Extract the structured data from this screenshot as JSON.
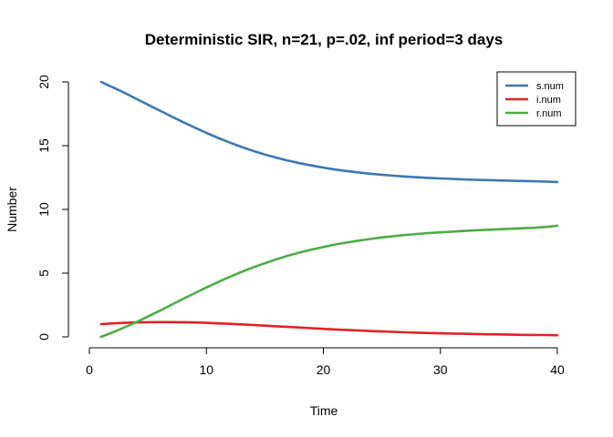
{
  "chart_data": {
    "type": "line",
    "title": "Deterministic SIR, n=21, p=.02, inf period=3 days",
    "xlabel": "Time",
    "ylabel": "Number",
    "xlim": [
      0,
      40
    ],
    "ylim": [
      0,
      20
    ],
    "x_ticks": [
      0,
      10,
      20,
      30,
      40
    ],
    "y_ticks": [
      0,
      5,
      10,
      15,
      20
    ],
    "grid": false,
    "legend_position": "top-right",
    "x": [
      1,
      2,
      3,
      4,
      5,
      6,
      7,
      8,
      9,
      10,
      11,
      12,
      13,
      14,
      15,
      16,
      17,
      18,
      19,
      20,
      21,
      22,
      23,
      24,
      25,
      26,
      27,
      28,
      29,
      30,
      31,
      32,
      33,
      34,
      35,
      36,
      37,
      38,
      39,
      40
    ],
    "series": [
      {
        "name": "s.num",
        "color": "#3b78b4",
        "values": [
          20.0,
          19.58,
          19.14,
          18.68,
          18.22,
          17.76,
          17.3,
          16.85,
          16.42,
          16.0,
          15.61,
          15.24,
          14.9,
          14.59,
          14.31,
          14.05,
          13.82,
          13.62,
          13.44,
          13.28,
          13.13,
          13.01,
          12.9,
          12.8,
          12.72,
          12.64,
          12.58,
          12.52,
          12.47,
          12.43,
          12.39,
          12.35,
          12.32,
          12.3,
          12.27,
          12.25,
          12.23,
          12.21,
          12.18,
          12.15
        ]
      },
      {
        "name": "i.num",
        "color": "#e02228",
        "values": [
          1.0,
          1.06,
          1.1,
          1.13,
          1.15,
          1.16,
          1.16,
          1.15,
          1.13,
          1.1,
          1.06,
          1.02,
          0.98,
          0.93,
          0.88,
          0.83,
          0.78,
          0.73,
          0.68,
          0.63,
          0.58,
          0.54,
          0.5,
          0.46,
          0.42,
          0.39,
          0.36,
          0.33,
          0.3,
          0.28,
          0.26,
          0.24,
          0.22,
          0.2,
          0.19,
          0.17,
          0.16,
          0.15,
          0.14,
          0.13
        ]
      },
      {
        "name": "r.num",
        "color": "#4dac47",
        "values": [
          0.0,
          0.36,
          0.74,
          1.15,
          1.59,
          2.04,
          2.51,
          2.97,
          3.43,
          3.87,
          4.3,
          4.71,
          5.09,
          5.45,
          5.78,
          6.09,
          6.37,
          6.62,
          6.85,
          7.05,
          7.24,
          7.4,
          7.55,
          7.68,
          7.8,
          7.9,
          7.99,
          8.07,
          8.14,
          8.2,
          8.26,
          8.31,
          8.36,
          8.4,
          8.44,
          8.48,
          8.52,
          8.56,
          8.62,
          8.72
        ]
      }
    ]
  }
}
